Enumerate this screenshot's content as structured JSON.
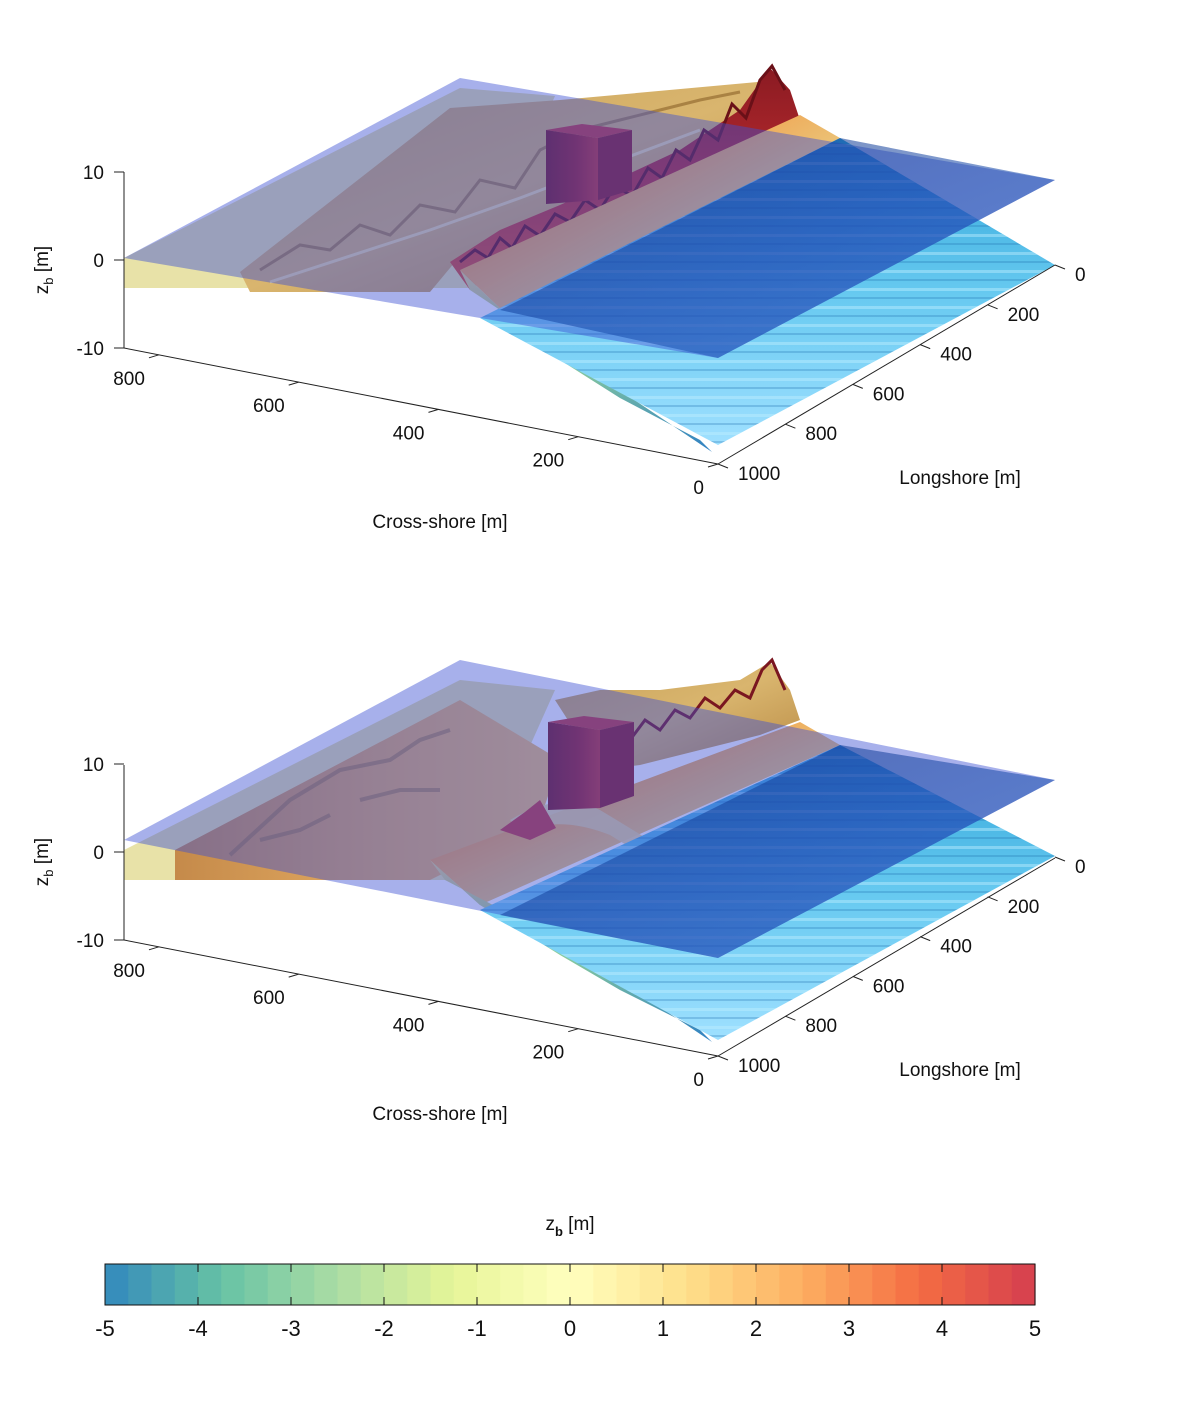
{
  "panels": [
    {
      "name": "panel-top",
      "chart_data": {
        "type": "surface",
        "zlabel": "z",
        "zlabel_sub": "b",
        "zlabel_unit": " [m]",
        "xlabel": "Cross-shore [m]",
        "ylabel": "Longshore [m]",
        "zticks": [
          "10",
          "0",
          "-10"
        ],
        "xticks": [
          "800",
          "600",
          "400",
          "200",
          "0"
        ],
        "yticks": [
          "0",
          "200",
          "400",
          "600",
          "800",
          "1000"
        ],
        "zlim": [
          -10,
          10
        ],
        "xlim": [
          0,
          850
        ],
        "ylim": [
          0,
          1000
        ],
        "water_level": 0
      }
    },
    {
      "name": "panel-bottom",
      "chart_data": {
        "type": "surface",
        "zlabel": "z",
        "zlabel_sub": "b",
        "zlabel_unit": " [m]",
        "xlabel": "Cross-shore [m]",
        "ylabel": "Longshore [m]",
        "zticks": [
          "10",
          "0",
          "-10"
        ],
        "xticks": [
          "800",
          "600",
          "400",
          "200",
          "0"
        ],
        "yticks": [
          "0",
          "200",
          "400",
          "600",
          "800",
          "1000"
        ],
        "zlim": [
          -10,
          10
        ],
        "xlim": [
          0,
          850
        ],
        "ylim": [
          0,
          1000
        ],
        "water_level": 0
      }
    }
  ],
  "colorbar": {
    "title": "z",
    "title_sub": "b",
    "title_unit": " [m]",
    "ticks": [
      "-5",
      "-4",
      "-3",
      "-2",
      "-1",
      "0",
      "1",
      "2",
      "3",
      "4",
      "5"
    ],
    "range": [
      -5,
      5
    ],
    "colors": [
      "#3288bd",
      "#66c2a5",
      "#abdda4",
      "#e6f598",
      "#ffffbf",
      "#fee08b",
      "#fdae61",
      "#f46d43",
      "#d53e4f"
    ]
  }
}
